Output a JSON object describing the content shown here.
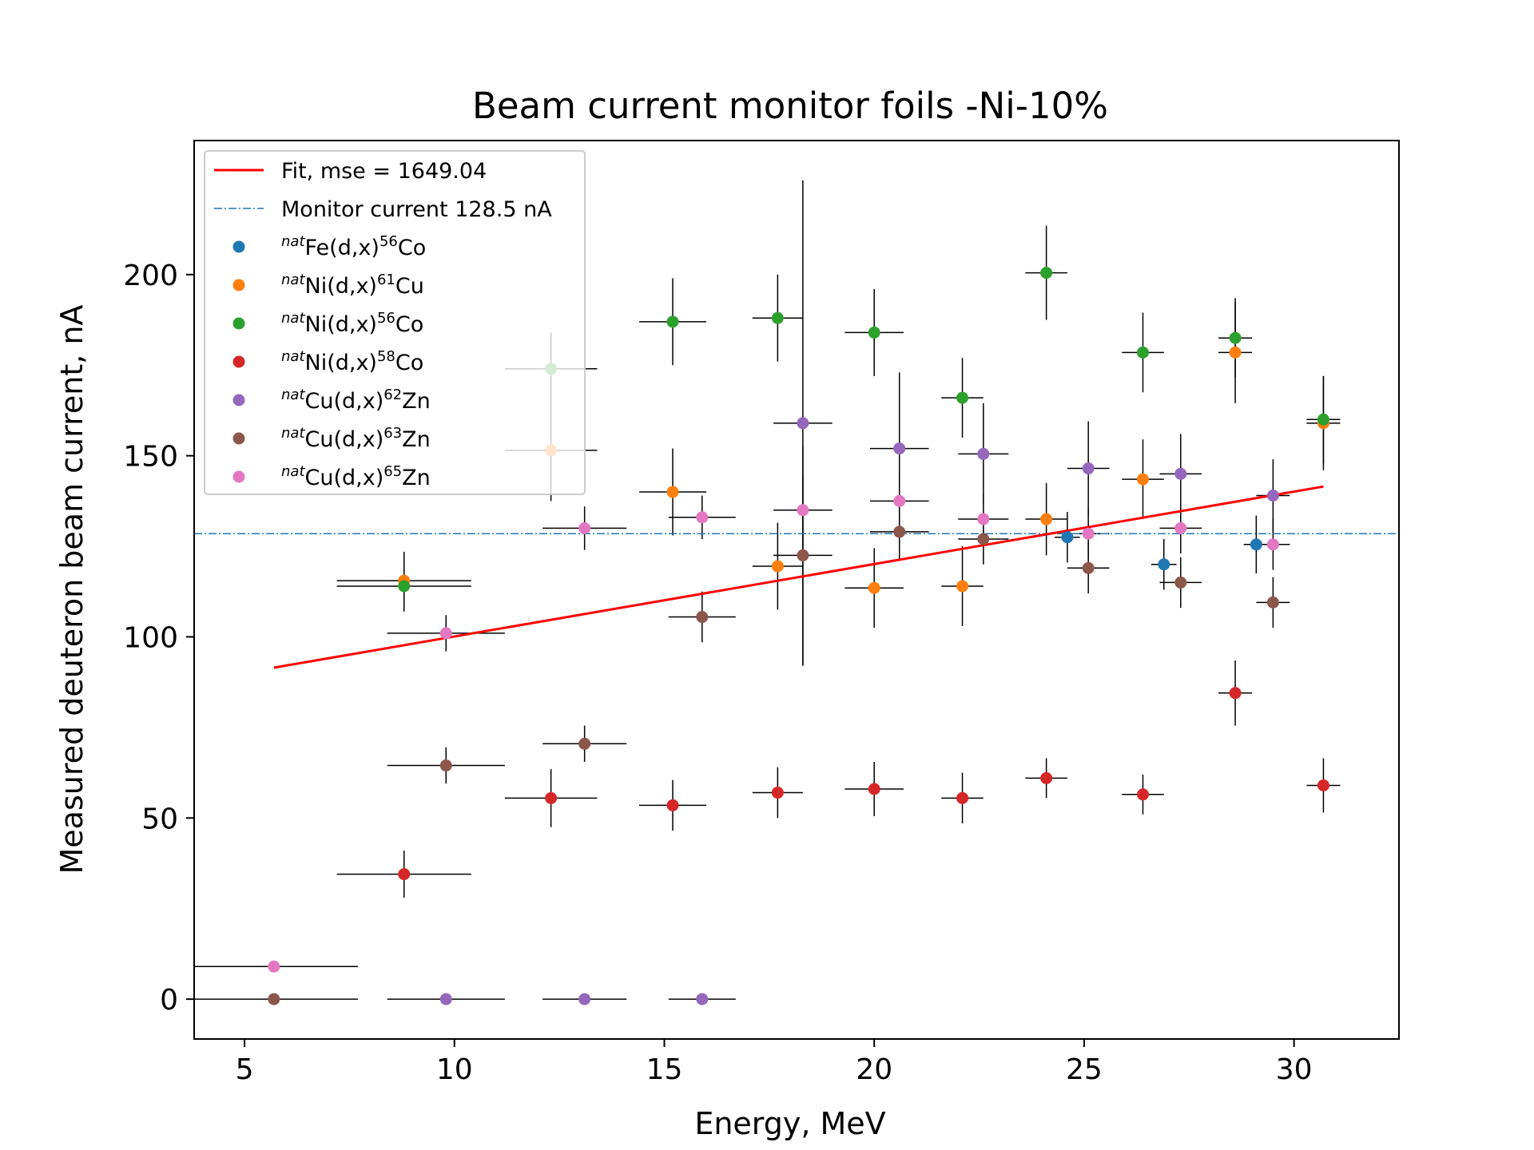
{
  "chart_data": {
    "type": "scatter",
    "title": "Beam current monitor foils -Ni-10%",
    "xlabel": "Energy, MeV",
    "ylabel": "Measured deuteron beam current, nA",
    "xlim": [
      3.8,
      32.5
    ],
    "ylim": [
      -11,
      237
    ],
    "xticks": [
      5,
      10,
      15,
      20,
      25,
      30
    ],
    "yticks": [
      0,
      50,
      100,
      150,
      200
    ],
    "legend_position": "upper-left",
    "colors": {
      "Fe56Co": "#1f77b4",
      "Ni61Cu": "#ff7f0e",
      "Ni56Co": "#2ca02c",
      "Ni58Co": "#d62728",
      "Cu62Zn": "#9467bd",
      "Cu63Zn": "#8c564b",
      "Cu65Zn": "#e377c2",
      "fit": "#ff0000",
      "monitor": "#1f77b4",
      "errorbar": "#000000"
    },
    "fit": {
      "label": "Fit, mse = 1649.04",
      "x": [
        5.7,
        30.7
      ],
      "y": [
        91.5,
        141.5
      ]
    },
    "monitor": {
      "label": "Monitor current 128.5 nA",
      "y": 128.5
    },
    "series": [
      {
        "key": "Fe56Co",
        "sup_pre": "nat",
        "label_main": "Fe(d,x)",
        "sup_mass": "56",
        "label_end": "Co",
        "points": [
          {
            "x": 24.6,
            "y": 127.5,
            "xerr": 0.3,
            "yerr": 7
          },
          {
            "x": 26.9,
            "y": 120.0,
            "xerr": 0.3,
            "yerr": 7
          },
          {
            "x": 29.1,
            "y": 125.5,
            "xerr": 0.3,
            "yerr": 8
          }
        ]
      },
      {
        "key": "Ni61Cu",
        "sup_pre": "nat",
        "label_main": "Ni(d,x)",
        "sup_mass": "61",
        "label_end": "Cu",
        "points": [
          {
            "x": 8.8,
            "y": 115.5,
            "xerr": 1.6,
            "yerr": 8
          },
          {
            "x": 12.3,
            "y": 151.5,
            "xerr": 1.1,
            "yerr": 14
          },
          {
            "x": 15.2,
            "y": 140.0,
            "xerr": 0.8,
            "yerr": 12
          },
          {
            "x": 17.7,
            "y": 119.5,
            "xerr": 0.6,
            "yerr": 12
          },
          {
            "x": 20.0,
            "y": 113.5,
            "xerr": 0.7,
            "yerr": 11
          },
          {
            "x": 22.1,
            "y": 114.0,
            "xerr": 0.5,
            "yerr": 11
          },
          {
            "x": 24.1,
            "y": 132.5,
            "xerr": 0.5,
            "yerr": 10
          },
          {
            "x": 26.4,
            "y": 143.5,
            "xerr": 0.5,
            "yerr": 11
          },
          {
            "x": 28.6,
            "y": 178.5,
            "xerr": 0.4,
            "yerr": 14
          },
          {
            "x": 30.7,
            "y": 159.0,
            "xerr": 0.4,
            "yerr": 13
          }
        ]
      },
      {
        "key": "Ni56Co",
        "sup_pre": "nat",
        "label_main": "Ni(d,x)",
        "sup_mass": "56",
        "label_end": "Co",
        "points": [
          {
            "x": 8.8,
            "y": 114.0,
            "xerr": 1.6,
            "yerr": 7
          },
          {
            "x": 12.3,
            "y": 174.0,
            "xerr": 1.1,
            "yerr": 10
          },
          {
            "x": 15.2,
            "y": 187.0,
            "xerr": 0.8,
            "yerr": 12
          },
          {
            "x": 17.7,
            "y": 188.0,
            "xerr": 0.6,
            "yerr": 12
          },
          {
            "x": 20.0,
            "y": 184.0,
            "xerr": 0.7,
            "yerr": 12
          },
          {
            "x": 22.1,
            "y": 166.0,
            "xerr": 0.5,
            "yerr": 11
          },
          {
            "x": 24.1,
            "y": 200.5,
            "xerr": 0.5,
            "yerr": 13
          },
          {
            "x": 26.4,
            "y": 178.5,
            "xerr": 0.5,
            "yerr": 11
          },
          {
            "x": 28.6,
            "y": 182.5,
            "xerr": 0.4,
            "yerr": 11
          },
          {
            "x": 30.7,
            "y": 160.0,
            "xerr": 0.4,
            "yerr": 12
          }
        ]
      },
      {
        "key": "Ni58Co",
        "sup_pre": "nat",
        "label_main": "Ni(d,x)",
        "sup_mass": "58",
        "label_end": "Co",
        "points": [
          {
            "x": 8.8,
            "y": 34.5,
            "xerr": 1.6,
            "yerr": 6.5
          },
          {
            "x": 12.3,
            "y": 55.5,
            "xerr": 1.1,
            "yerr": 8
          },
          {
            "x": 15.2,
            "y": 53.5,
            "xerr": 0.8,
            "yerr": 7
          },
          {
            "x": 17.7,
            "y": 57.0,
            "xerr": 0.6,
            "yerr": 7
          },
          {
            "x": 20.0,
            "y": 58.0,
            "xerr": 0.7,
            "yerr": 7.5
          },
          {
            "x": 22.1,
            "y": 55.5,
            "xerr": 0.5,
            "yerr": 7
          },
          {
            "x": 24.1,
            "y": 61.0,
            "xerr": 0.5,
            "yerr": 5.5
          },
          {
            "x": 26.4,
            "y": 56.5,
            "xerr": 0.5,
            "yerr": 5.5
          },
          {
            "x": 28.6,
            "y": 84.5,
            "xerr": 0.4,
            "yerr": 9
          },
          {
            "x": 30.7,
            "y": 59.0,
            "xerr": 0.4,
            "yerr": 7.5
          }
        ]
      },
      {
        "key": "Cu62Zn",
        "sup_pre": "nat",
        "label_main": "Cu(d,x)",
        "sup_mass": "62",
        "label_end": "Zn",
        "points": [
          {
            "x": 9.8,
            "y": 0,
            "xerr": 1.4,
            "yerr": 0
          },
          {
            "x": 13.1,
            "y": 0,
            "xerr": 1.0,
            "yerr": 0
          },
          {
            "x": 15.9,
            "y": 0,
            "xerr": 0.8,
            "yerr": 0
          },
          {
            "x": 18.3,
            "y": 159.0,
            "xerr": 0.7,
            "yerr": 67
          },
          {
            "x": 20.6,
            "y": 152.0,
            "xerr": 0.7,
            "yerr": 21
          },
          {
            "x": 22.6,
            "y": 150.5,
            "xerr": 0.6,
            "yerr": 14
          },
          {
            "x": 25.1,
            "y": 146.5,
            "xerr": 0.5,
            "yerr": 13
          },
          {
            "x": 27.3,
            "y": 145.0,
            "xerr": 0.5,
            "yerr": 11
          },
          {
            "x": 29.5,
            "y": 139.0,
            "xerr": 0.4,
            "yerr": 10
          }
        ]
      },
      {
        "key": "Cu63Zn",
        "sup_pre": "nat",
        "label_main": "Cu(d,x)",
        "sup_mass": "63",
        "label_end": "Zn",
        "points": [
          {
            "x": 5.7,
            "y": 0,
            "xerr": 2.0,
            "yerr": 0
          },
          {
            "x": 9.8,
            "y": 64.5,
            "xerr": 1.4,
            "yerr": 5
          },
          {
            "x": 13.1,
            "y": 70.5,
            "xerr": 1.0,
            "yerr": 5
          },
          {
            "x": 15.9,
            "y": 105.5,
            "xerr": 0.8,
            "yerr": 7
          },
          {
            "x": 18.3,
            "y": 122.5,
            "xerr": 0.7,
            "yerr": 30
          },
          {
            "x": 20.6,
            "y": 129.0,
            "xerr": 0.7,
            "yerr": 8
          },
          {
            "x": 22.6,
            "y": 127.0,
            "xerr": 0.6,
            "yerr": 7
          },
          {
            "x": 25.1,
            "y": 119.0,
            "xerr": 0.5,
            "yerr": 7
          },
          {
            "x": 27.3,
            "y": 115.0,
            "xerr": 0.5,
            "yerr": 7
          },
          {
            "x": 29.5,
            "y": 109.5,
            "xerr": 0.4,
            "yerr": 7
          }
        ]
      },
      {
        "key": "Cu65Zn",
        "sup_pre": "nat",
        "label_main": "Cu(d,x)",
        "sup_mass": "65",
        "label_end": "Zn",
        "points": [
          {
            "x": 5.7,
            "y": 9.0,
            "xerr": 2.0,
            "yerr": 0
          },
          {
            "x": 9.8,
            "y": 101.0,
            "xerr": 1.4,
            "yerr": 5
          },
          {
            "x": 13.1,
            "y": 130.0,
            "xerr": 1.0,
            "yerr": 6
          },
          {
            "x": 15.9,
            "y": 133.0,
            "xerr": 0.8,
            "yerr": 6
          },
          {
            "x": 18.3,
            "y": 135.0,
            "xerr": 0.7,
            "yerr": 10
          },
          {
            "x": 20.6,
            "y": 137.5,
            "xerr": 0.7,
            "yerr": 8
          },
          {
            "x": 22.6,
            "y": 132.5,
            "xerr": 0.6,
            "yerr": 7
          },
          {
            "x": 25.1,
            "y": 128.5,
            "xerr": 0.5,
            "yerr": 7
          },
          {
            "x": 27.3,
            "y": 130.0,
            "xerr": 0.5,
            "yerr": 7
          },
          {
            "x": 29.5,
            "y": 125.5,
            "xerr": 0.4,
            "yerr": 7
          }
        ]
      }
    ]
  }
}
